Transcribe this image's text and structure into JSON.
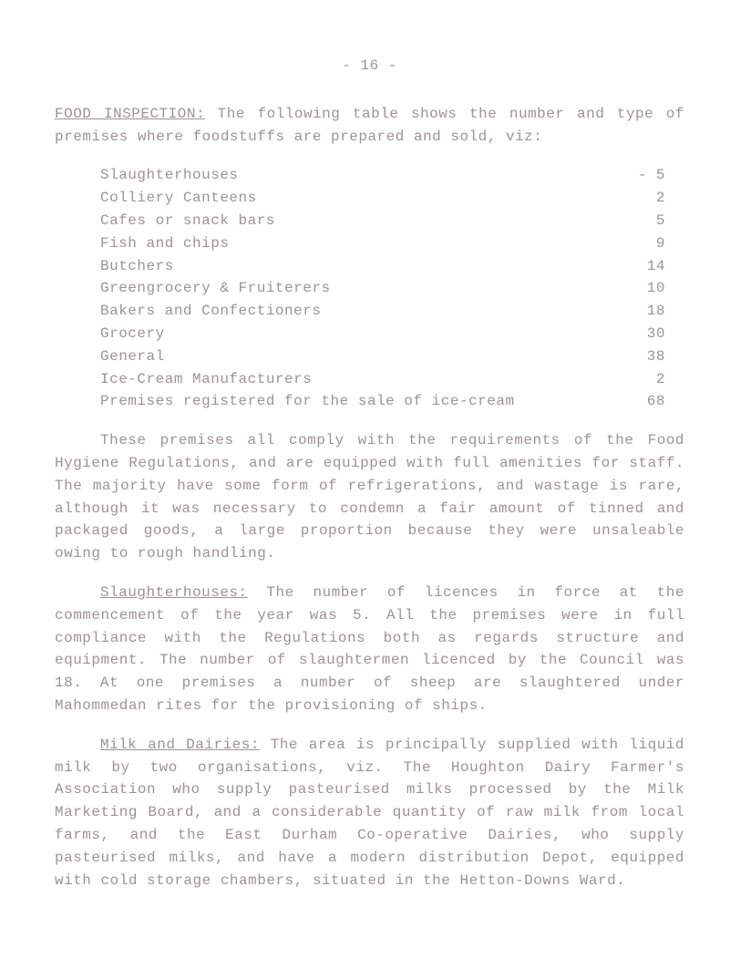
{
  "page_number_line": "- 16 -",
  "section1": {
    "heading": "FOOD INSPECTION:",
    "intro": " The following table shows the number and type of premises where foodstuffs are prepared and sold, viz:"
  },
  "table_rows": [
    {
      "label": "Slaughterhouses",
      "value": "- 5"
    },
    {
      "label": "Colliery Canteens",
      "value": "2"
    },
    {
      "label": "Cafes or snack bars",
      "value": "5"
    },
    {
      "label": "Fish and chips",
      "value": "9"
    },
    {
      "label": "Butchers",
      "value": "14"
    },
    {
      "label": "Greengrocery & Fruiterers",
      "value": "10"
    },
    {
      "label": "Bakers and Confectioners",
      "value": "18"
    },
    {
      "label": "Grocery",
      "value": "30"
    },
    {
      "label": "General",
      "value": "38"
    },
    {
      "label": "Ice-Cream Manufacturers",
      "value": "2"
    },
    {
      "label": "Premises registered for the sale of ice-cream",
      "value": "68"
    }
  ],
  "para_compliance": "These premises all comply with the requirements of the Food Hygiene Regulations, and are equipped with full amenities for staff. The majority have some form of refrigerations, and wastage is rare, although it was necessary to condemn a fair amount of tinned and packaged goods, a large proportion because they were unsaleable owing to rough handling.",
  "section2": {
    "heading": "Slaughterhouses:",
    "body": " The number of licences in force at the commencement of the year was 5. All the premises were in full compliance with the Regulations both as regards structure and equipment. The number of slaughtermen licenced by the Council was 18. At one premises a number of sheep are slaughtered under Mahommedan rites for the provisioning of ships."
  },
  "section3": {
    "heading": "Milk and Dairies:",
    "body": " The area is principally supplied with liquid milk by two organisations, viz. The Houghton Dairy Farmer's Association who supply pasteurised milks processed by the Milk Marketing Board, and a considerable quantity of raw milk from local farms, and the East Durham Co-operative Dairies, who supply pasteurised milks, and have a modern distribution Depot, equipped with cold storage chambers, situated in the Hetton-Downs Ward."
  },
  "colors": {
    "text": "#9b9494",
    "background": "#ffffff"
  },
  "font": {
    "family": "Courier New",
    "size_pt": 12
  }
}
